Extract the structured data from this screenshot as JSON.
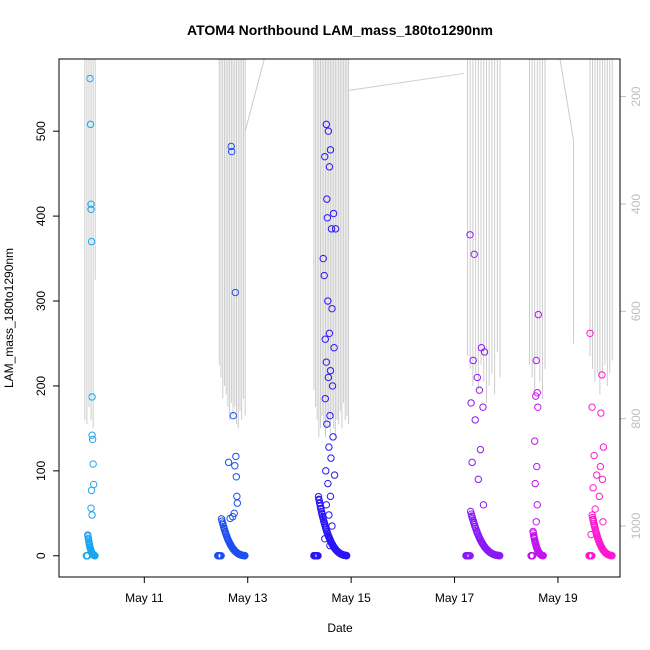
{
  "chart_data": {
    "type": "scatter",
    "title": "ATOM4 Northbound LAM_mass_180to1290nm",
    "xlabel": "Date",
    "ylabel": "LAM_mass_180to1290nm",
    "x_ticks": [
      "May 11",
      "May 13",
      "May 15",
      "May 17",
      "May 19"
    ],
    "x_tick_days": [
      11,
      13,
      15,
      17,
      19
    ],
    "xlim_days": [
      9.35,
      20.2
    ],
    "ylim": [
      -25,
      585
    ],
    "y_ticks": [
      0,
      100,
      200,
      300,
      400,
      500
    ],
    "right_axis_ticks": [
      200,
      400,
      600,
      800,
      1000
    ],
    "right_axis_lim": [
      1095,
      130
    ],
    "right_axis_color": "#bebebe",
    "altitude_line_color": "#cccccc",
    "point_colors": {
      "day_10": "#1aa6f0",
      "day_12_13": "#1f4ff0",
      "day_14_15": "#2a16f5",
      "day_17_18": "#8a1af5",
      "day_18_19": "#c215ec",
      "day_19_20": "#ff1ad2"
    },
    "series": [
      {
        "color": "#1aa6f0",
        "x": [
          9.95,
          9.96,
          9.97,
          9.97,
          9.98,
          9.99,
          9.99,
          10.0,
          10.01,
          10.02,
          9.98,
          9.97,
          9.99
        ],
        "y": [
          562,
          508,
          414,
          408,
          370,
          187,
          142,
          137,
          108,
          84,
          77,
          56,
          48
        ]
      },
      {
        "color": "#1f4ff0",
        "x": [
          12.68,
          12.69,
          12.72,
          12.76,
          12.63,
          12.77,
          12.75,
          12.78,
          12.79,
          12.8,
          12.74,
          12.71,
          12.66
        ],
        "y": [
          482,
          476,
          165,
          310,
          110,
          117,
          106,
          93,
          70,
          62,
          50,
          46,
          44
        ]
      },
      {
        "color": "#2a16f5",
        "x": [
          14.52,
          14.56,
          14.6,
          14.49,
          14.58,
          14.53,
          14.66,
          14.54,
          14.62,
          14.46,
          14.7,
          14.48,
          14.55,
          14.63,
          14.58,
          14.5,
          14.67,
          14.52,
          14.6,
          14.56,
          14.64,
          14.5,
          14.59,
          14.53,
          14.65,
          14.57,
          14.61,
          14.51,
          14.68,
          14.55,
          14.6,
          14.52,
          14.57,
          14.63,
          14.49,
          14.59
        ],
        "y": [
          508,
          500,
          478,
          470,
          458,
          420,
          403,
          398,
          385,
          350,
          385,
          330,
          300,
          291,
          262,
          255,
          245,
          228,
          218,
          210,
          200,
          185,
          165,
          155,
          140,
          128,
          115,
          100,
          95,
          85,
          70,
          60,
          48,
          35,
          20,
          12
        ]
      },
      {
        "color": "#8a1af5",
        "x": [
          17.3,
          17.38,
          17.52,
          17.58,
          17.36,
          17.44,
          17.48,
          17.32,
          17.55,
          17.4,
          17.5,
          17.34,
          17.46,
          17.56
        ],
        "y": [
          378,
          355,
          245,
          240,
          230,
          210,
          195,
          180,
          175,
          160,
          125,
          110,
          90,
          60
        ]
      },
      {
        "color": "#c215ec",
        "x": [
          18.62,
          18.58,
          18.6,
          18.57,
          18.61,
          18.55,
          18.59,
          18.56,
          18.6,
          18.58
        ],
        "y": [
          284,
          230,
          192,
          188,
          175,
          135,
          105,
          85,
          60,
          40
        ]
      },
      {
        "color": "#ff1ad2",
        "x": [
          19.62,
          19.85,
          19.66,
          19.83,
          19.88,
          19.7,
          19.82,
          19.75,
          19.86,
          19.68,
          19.8,
          19.72,
          19.87,
          19.64
        ],
        "y": [
          262,
          213,
          175,
          168,
          128,
          118,
          105,
          95,
          90,
          80,
          70,
          55,
          40,
          25
        ]
      }
    ],
    "grid": false,
    "legend": "none"
  }
}
